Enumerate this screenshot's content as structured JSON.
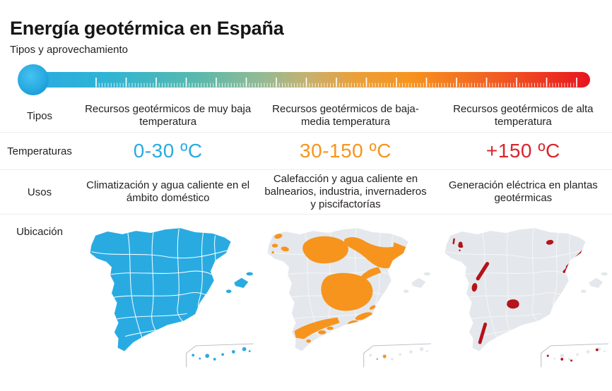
{
  "header": {
    "title": "Energía geotérmica en España",
    "subtitle": "Tipos y aprovechamiento"
  },
  "thermometer": {
    "description": "graduated temperature scale from cold to hot",
    "cold_color": "#29abe2",
    "warm_color": "#f7941e",
    "hot_color": "#e8141f"
  },
  "row_labels": {
    "tipos": "Tipos",
    "temperaturas": "Temperaturas",
    "usos": "Usos",
    "ubicacion": "Ubicación"
  },
  "columns": [
    {
      "tipo": "Recursos geotérmicos de muy baja temperatura",
      "temperatura": "0-30 ºC",
      "temperatura_color": "#29abe2",
      "usos": "Climatización y agua caliente en el ámbito doméstico",
      "map": {
        "name": "spain-map-very-low-temperature",
        "base_color": "#29abe2",
        "highlight_color": "#29abe2",
        "coverage": "whole country highlighted"
      }
    },
    {
      "tipo": "Recursos geotérmicos de baja-media temperatura",
      "temperatura": "30-150 ºC",
      "temperatura_color": "#f7941e",
      "usos": "Calefacción y agua caliente en balnearios, industria, invernaderos y piscifactorías",
      "map": {
        "name": "spain-map-low-medium-temperature",
        "base_color": "#e4e8ec",
        "highlight_color": "#f7941e",
        "coverage": "large basins: Duero, Ebro, Tajo-La Mancha, Guadalquivir, Galicia spots, Canary spots"
      }
    },
    {
      "tipo": "Recursos geotérmicos de alta temperatura",
      "temperatura": "+150 ºC",
      "temperatura_color": "#d9252b",
      "usos": "Generación eléctrica en plantas geotérmicas",
      "map": {
        "name": "spain-map-high-temperature",
        "base_color": "#e4e8ec",
        "highlight_color": "#b5121b",
        "coverage": "small spots: Galicia, Pyrenees, Catalonia coast, west strip, central spot, south strip, Canary dots"
      }
    }
  ]
}
